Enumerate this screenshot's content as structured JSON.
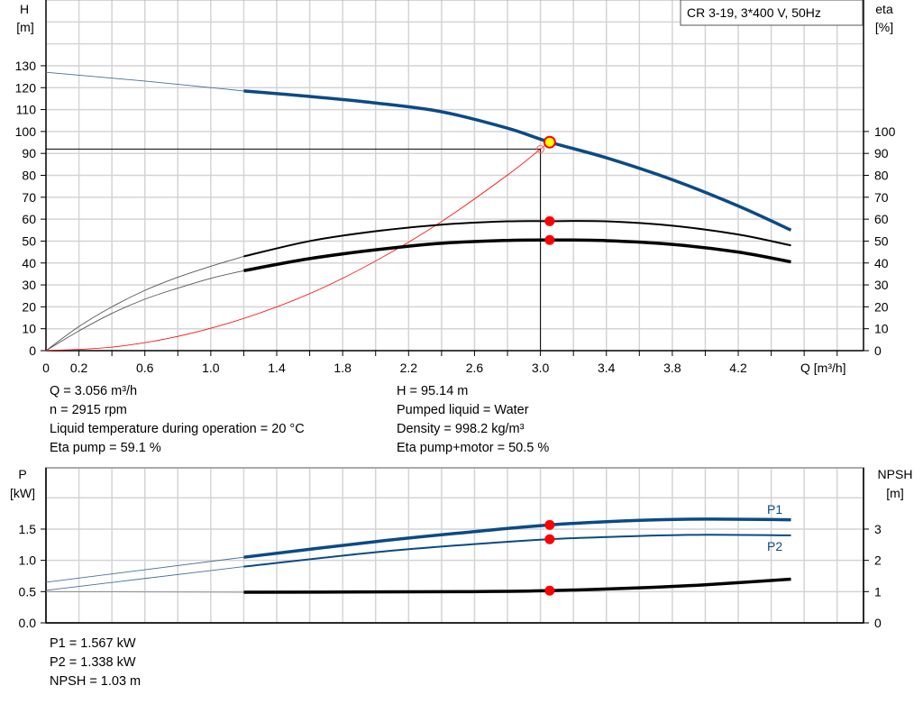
{
  "chart_data": [
    {
      "type": "line",
      "title": "CR 3-19, 3*400 V, 50Hz",
      "xlabel": "Q [m³/h]",
      "ylabel_left": [
        "H",
        "[m]"
      ],
      "ylabel_right": [
        "eta",
        "[%]"
      ],
      "xlim": [
        0,
        4.96
      ],
      "ylim": [
        0,
        160
      ],
      "x_ticks": [
        "0",
        "0.2",
        "0.6",
        "1.0",
        "1.4",
        "1.8",
        "2.2",
        "2.6",
        "3.0",
        "3.4",
        "3.8",
        "4.2"
      ],
      "y_ticks_left": [
        "0",
        "10",
        "20",
        "30",
        "40",
        "50",
        "60",
        "70",
        "80",
        "90",
        "100",
        "110",
        "120",
        "130"
      ],
      "y_ticks_right": [
        "0",
        "10",
        "20",
        "30",
        "40",
        "50",
        "60",
        "70",
        "80",
        "90",
        "100"
      ],
      "grid": true,
      "series": [
        {
          "id": "H",
          "color": "#0b4a85",
          "x": [
            0,
            0.6,
            1.2,
            1.6,
            2.0,
            2.4,
            2.8,
            3.056,
            3.4,
            3.8,
            4.2,
            4.52
          ],
          "y": [
            127,
            123,
            118.5,
            116,
            113,
            109,
            101.5,
            95.14,
            88,
            78,
            66,
            55
          ]
        },
        {
          "id": "eta_pump",
          "color": "#000000",
          "x": [
            0,
            0.2,
            0.4,
            0.6,
            0.8,
            1.0,
            1.2,
            1.6,
            2.0,
            2.4,
            2.8,
            3.056,
            3.4,
            3.8,
            4.2,
            4.52
          ],
          "y": [
            0,
            11,
            20,
            27.5,
            33.5,
            38.5,
            43,
            50,
            54.5,
            57.5,
            59,
            59.1,
            59,
            57,
            53,
            48
          ]
        },
        {
          "id": "eta_pump_motor",
          "color": "#000000",
          "x": [
            0,
            0.2,
            0.4,
            0.6,
            0.8,
            1.0,
            1.2,
            1.6,
            2.0,
            2.4,
            2.8,
            3.056,
            3.4,
            3.8,
            4.2,
            4.52
          ],
          "y": [
            0,
            9,
            17,
            23.5,
            28.5,
            33,
            36.5,
            42,
            46,
            49,
            50.3,
            50.5,
            50.2,
            48.5,
            45,
            40.5
          ]
        },
        {
          "id": "system_curve",
          "color": "#ff0000",
          "x": [
            0,
            0.4,
            0.8,
            1.2,
            1.6,
            2.0,
            2.4,
            2.8,
            3.0
          ],
          "y": [
            0,
            1.6,
            6.5,
            14.7,
            26,
            40.9,
            58.9,
            80.1,
            92
          ]
        }
      ],
      "duty_point": {
        "Q": 3.056,
        "H": 95.14,
        "eta_pump": 59.1,
        "eta_pump_motor": 50.5
      },
      "requested_point": {
        "Q": 3.0,
        "H": 92
      }
    },
    {
      "type": "line",
      "ylabel_left": [
        "P",
        "[kW]"
      ],
      "ylabel_right": [
        "NPSH",
        "[m]"
      ],
      "xlim": [
        0,
        4.96
      ],
      "ylim": [
        0,
        2.48
      ],
      "y_ticks_left": [
        "0.0",
        "0.5",
        "1.0",
        "1.5"
      ],
      "y_ticks_right": [
        "0",
        "1",
        "2",
        "3"
      ],
      "grid": true,
      "series": [
        {
          "id": "P1",
          "name": "P1",
          "color": "#0b4a85",
          "x": [
            0,
            1.2,
            2.0,
            2.6,
            3.056,
            3.6,
            4.0,
            4.52
          ],
          "y": [
            0.65,
            1.05,
            1.3,
            1.46,
            1.567,
            1.64,
            1.66,
            1.65
          ]
        },
        {
          "id": "P2",
          "name": "P2",
          "color": "#0b4a85",
          "x": [
            0,
            1.2,
            2.0,
            2.6,
            3.056,
            3.6,
            4.0,
            4.52
          ],
          "y": [
            0.52,
            0.9,
            1.13,
            1.26,
            1.338,
            1.39,
            1.41,
            1.4
          ]
        },
        {
          "id": "NPSH",
          "color": "#000000",
          "axis": "right",
          "x": [
            0,
            1.2,
            2.0,
            2.6,
            3.056,
            3.6,
            4.0,
            4.52
          ],
          "y": [
            1.0,
            0.98,
            0.99,
            1.0,
            1.03,
            1.12,
            1.22,
            1.4
          ]
        }
      ],
      "duty_point": {
        "Q": 3.056,
        "P1": 1.567,
        "P2": 1.338,
        "NPSH": 1.03
      }
    }
  ],
  "info_top": {
    "left": [
      "Q = 3.056 m³/h",
      "n = 2915 rpm",
      "Liquid temperature during operation = 20 °C",
      "Eta pump = 59.1 %"
    ],
    "right": [
      "H = 95.14 m",
      "Pumped liquid = Water",
      "Density = 998.2 kg/m³",
      "Eta pump+motor = 50.5 %"
    ]
  },
  "info_bottom": [
    "P1 = 1.567 kW",
    "P2 = 1.338 kW",
    "NPSH = 1.03 m"
  ]
}
